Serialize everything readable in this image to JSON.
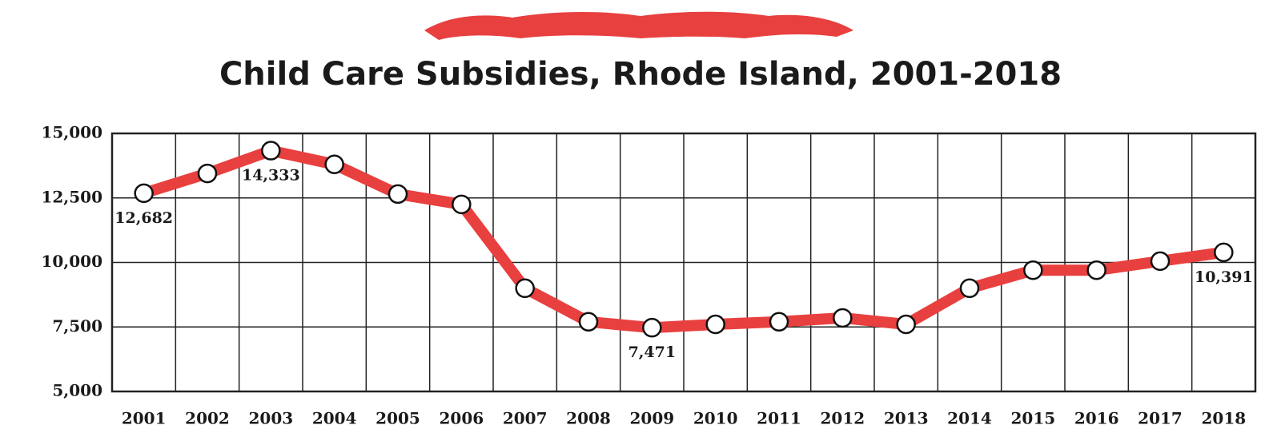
{
  "chart_data": {
    "type": "line",
    "title": "Child Care Subsidies, Rhode Island, 2001-2018",
    "categories": [
      "2001",
      "2002",
      "2003",
      "2004",
      "2005",
      "2006",
      "2007",
      "2008",
      "2009",
      "2010",
      "2011",
      "2012",
      "2013",
      "2014",
      "2015",
      "2016",
      "2017",
      "2018"
    ],
    "series": [
      {
        "name": "Child Care Subsidies",
        "color": "#e8403f",
        "values": [
          12682,
          13450,
          14333,
          13800,
          12650,
          12250,
          9000,
          7700,
          7471,
          7600,
          7700,
          7850,
          7600,
          9000,
          9700,
          9700,
          10050,
          10391
        ],
        "value_labels": [
          "12,682",
          null,
          "14,333",
          null,
          null,
          null,
          null,
          null,
          "7,471",
          null,
          null,
          null,
          null,
          null,
          null,
          null,
          null,
          "10,391"
        ]
      }
    ],
    "ylim": [
      5000,
      15000
    ],
    "yticks": [
      {
        "value": 5000,
        "label": "5,000"
      },
      {
        "value": 7500,
        "label": "7,500"
      },
      {
        "value": 10000,
        "label": "10,000"
      },
      {
        "value": 12500,
        "label": "12,500"
      },
      {
        "value": 15000,
        "label": "15,000"
      }
    ],
    "grid": true
  }
}
